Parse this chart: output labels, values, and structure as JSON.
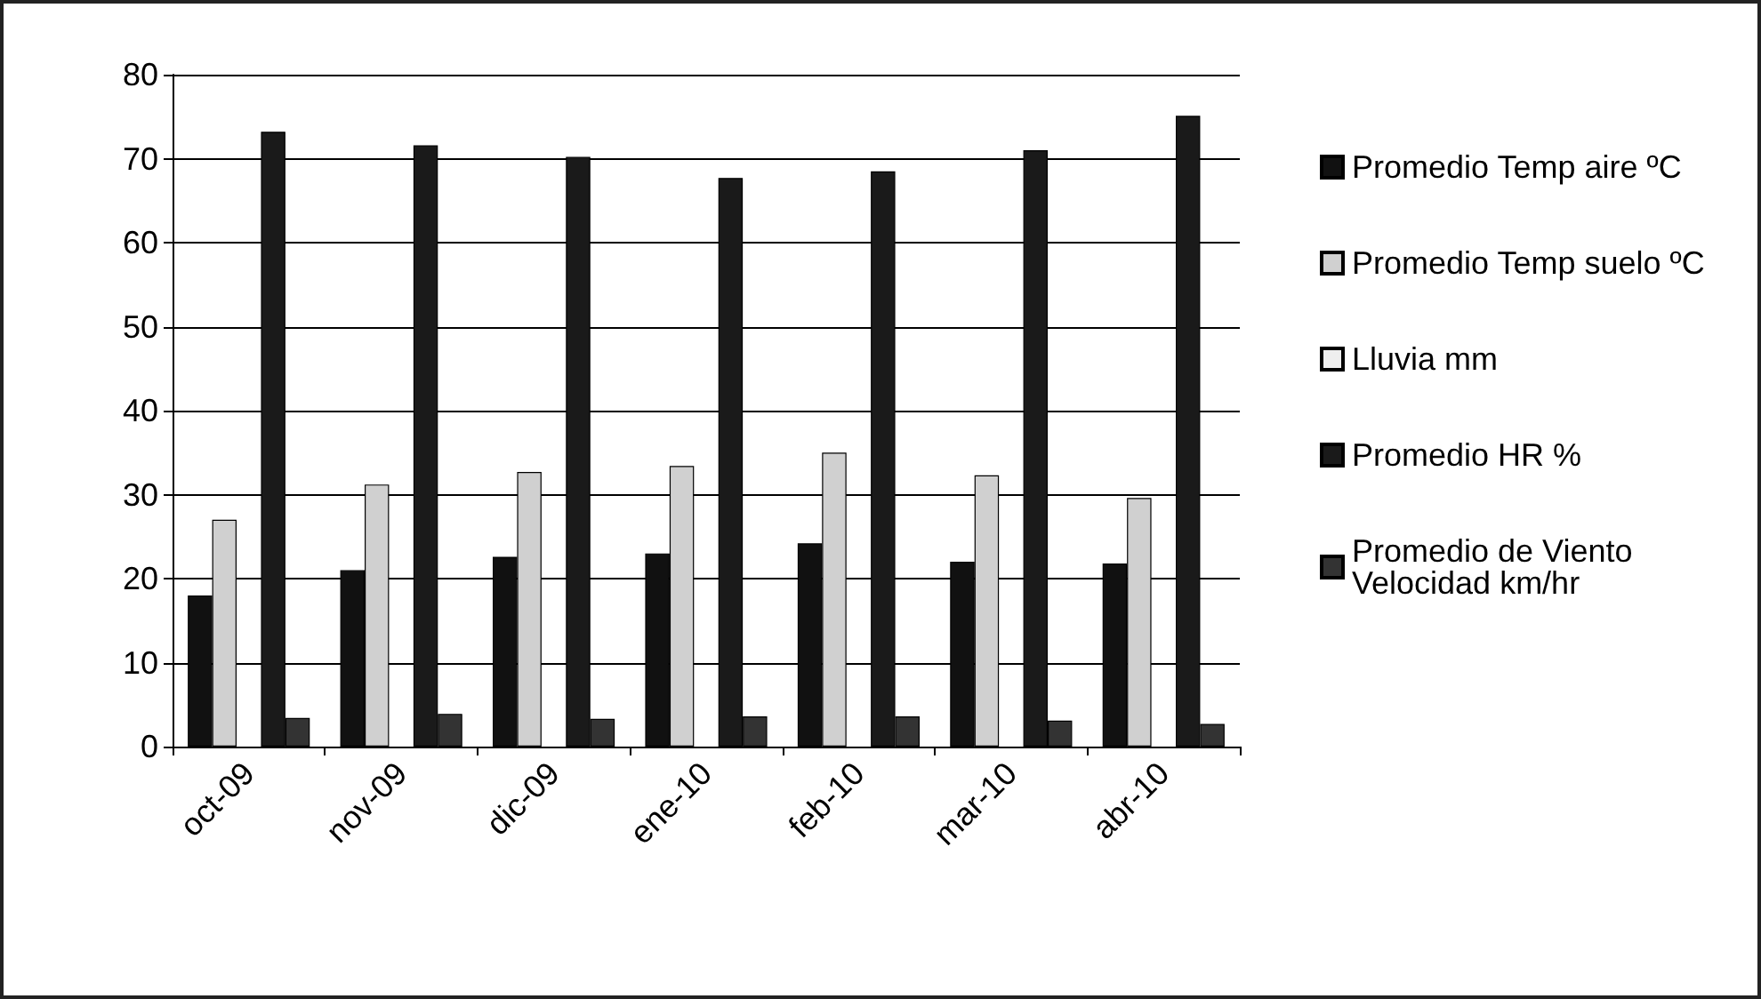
{
  "chart_data": {
    "type": "bar",
    "categories": [
      "oct-09",
      "nov-09",
      "dic-09",
      "ene-10",
      "feb-10",
      "mar-10",
      "abr-10"
    ],
    "series": [
      {
        "name": "Promedio Temp aire ºC",
        "color": "#111111",
        "values": [
          18,
          21,
          22.6,
          23,
          24.2,
          22,
          21.8
        ]
      },
      {
        "name": "Promedio Temp suelo ºC",
        "color": "#d0d0d0",
        "values": [
          27,
          31.2,
          32.7,
          33.4,
          35,
          32.3,
          29.6
        ]
      },
      {
        "name": "Lluvia mm",
        "color": "#eeeeee",
        "values": [
          0,
          0,
          0,
          0,
          0,
          0,
          0
        ]
      },
      {
        "name": "Promedio HR %",
        "color": "#1a1a1a",
        "values": [
          73.2,
          71.6,
          70.2,
          67.7,
          68.5,
          71,
          75.1
        ]
      },
      {
        "name": "Promedio de Viento Velocidad km/hr",
        "color": "#333333",
        "values": [
          3.4,
          3.9,
          3.3,
          3.6,
          3.6,
          3.1,
          2.7
        ]
      }
    ],
    "ylim": [
      0,
      80
    ],
    "yticks": [
      0,
      10,
      20,
      30,
      40,
      50,
      60,
      70,
      80
    ],
    "grid": "y",
    "legend": "right"
  }
}
